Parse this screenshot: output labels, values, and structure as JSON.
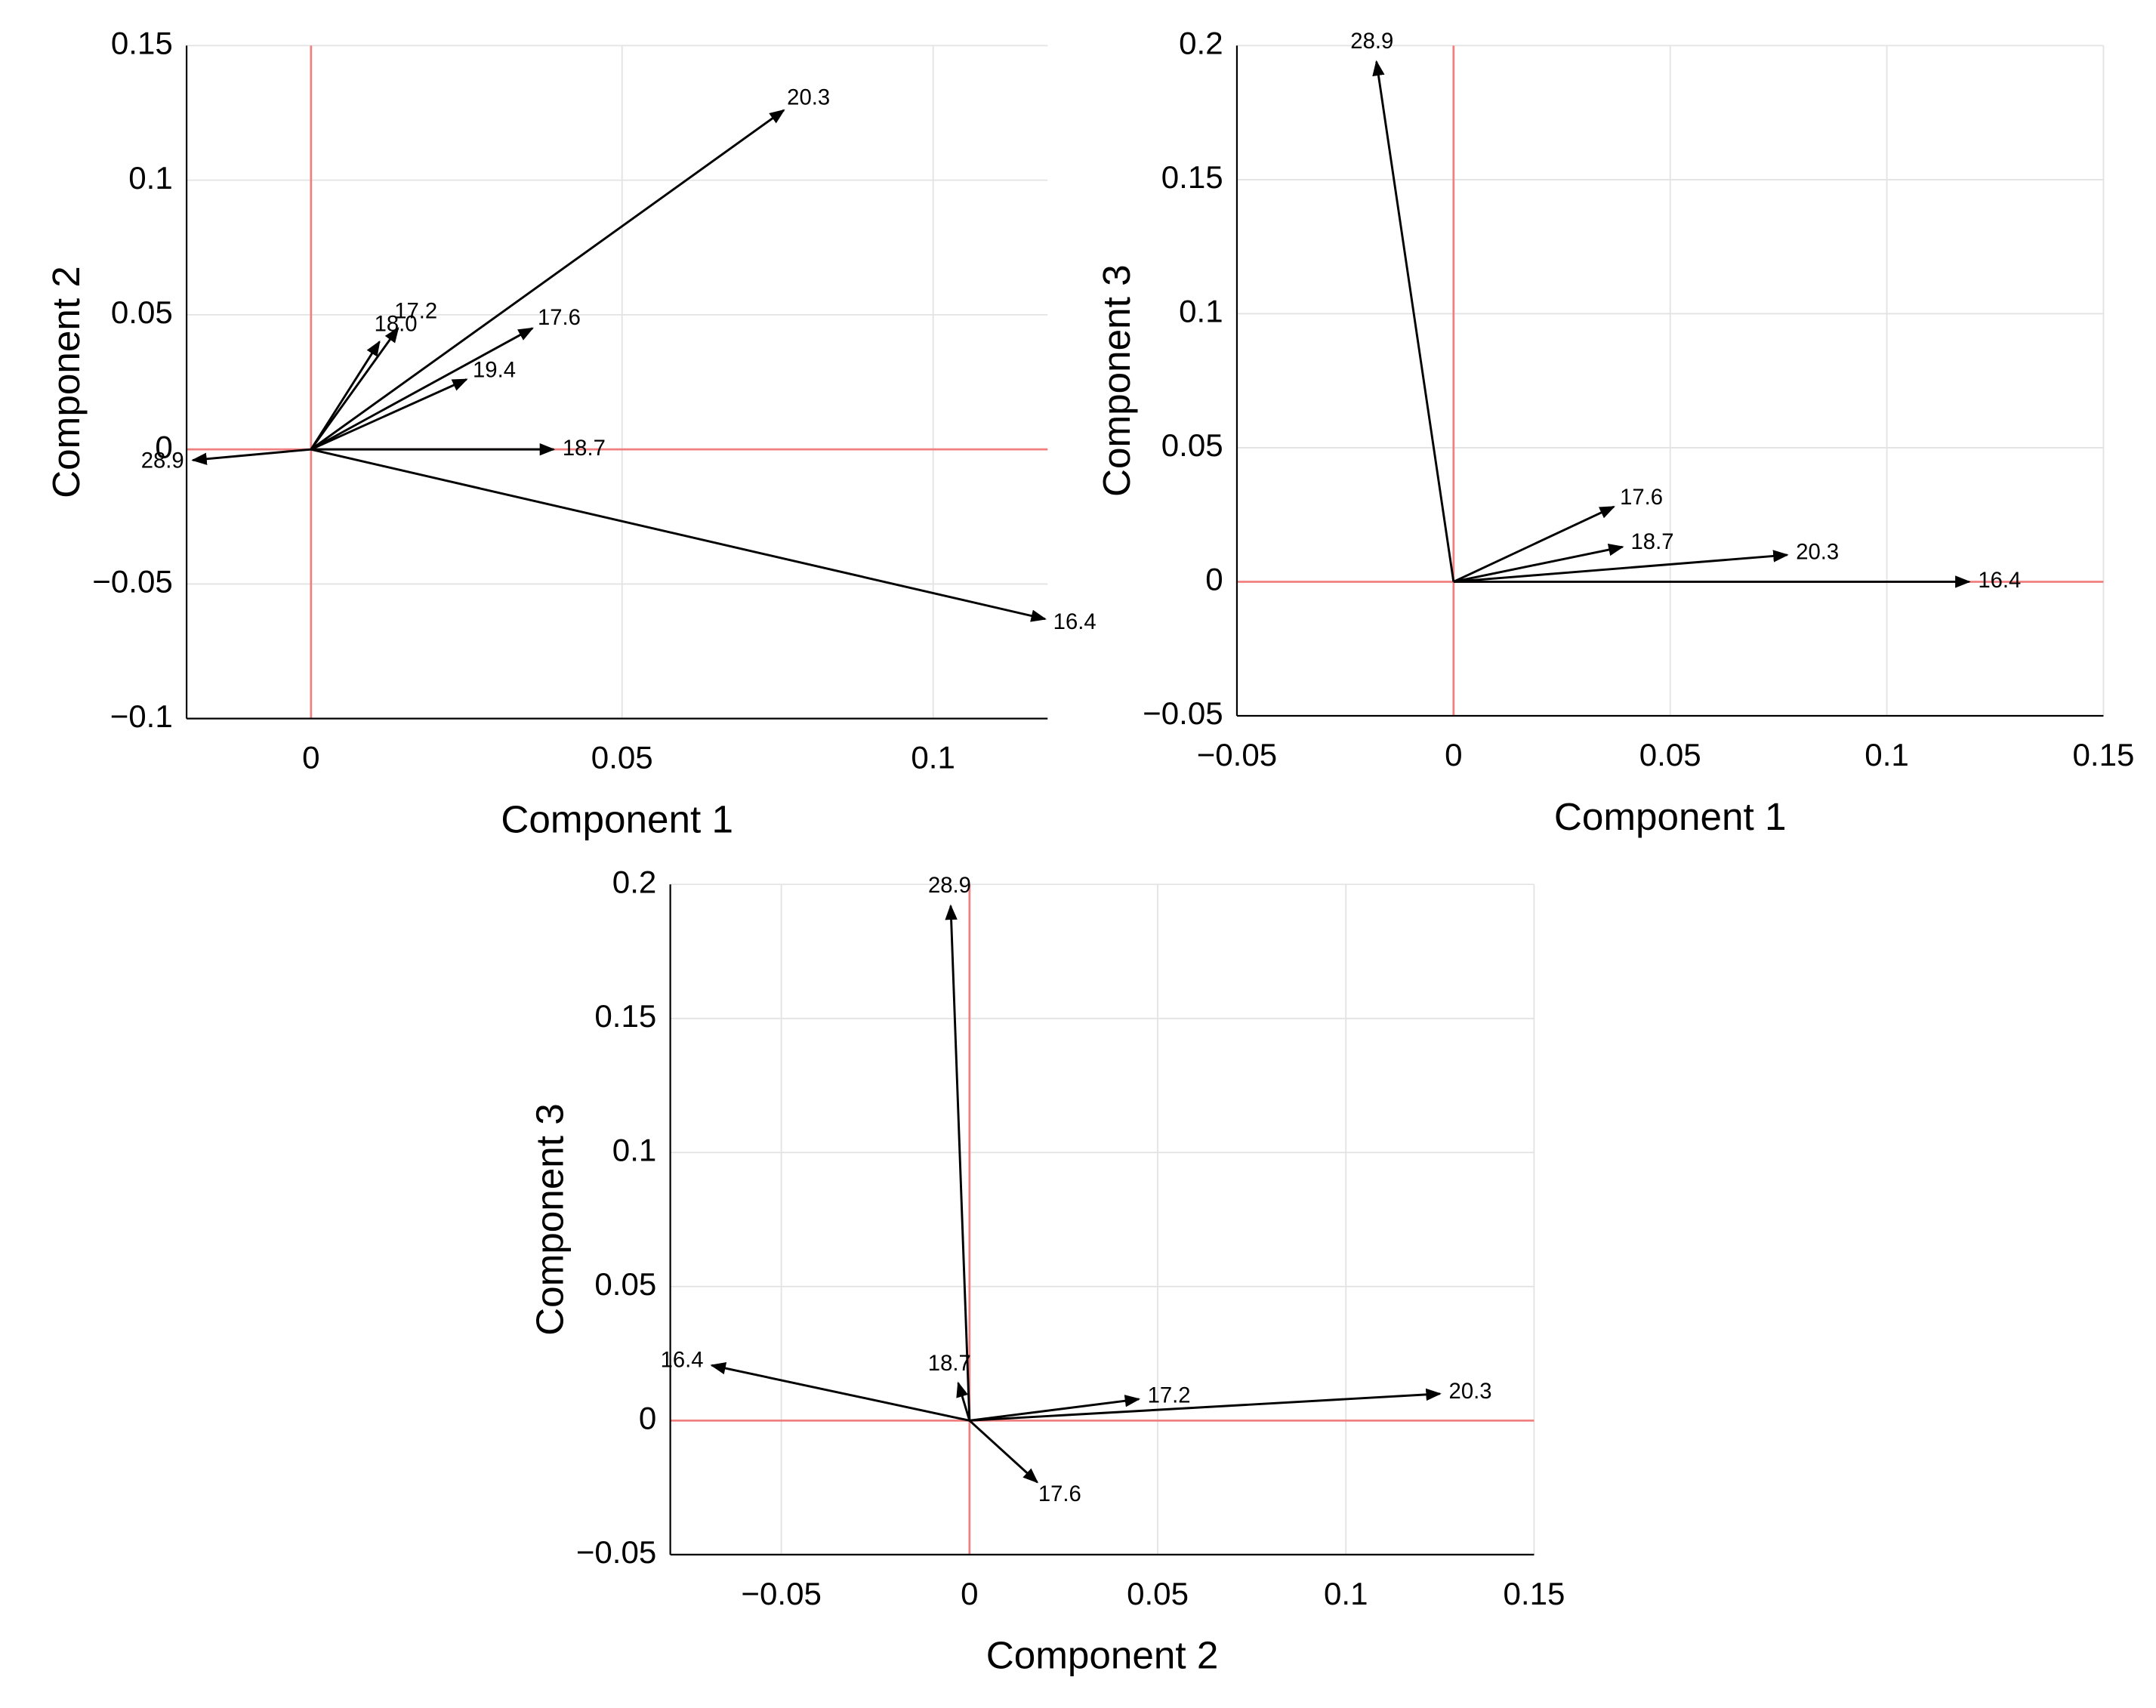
{
  "chart_data": [
    {
      "type": "vector",
      "xlabel": "Component 1",
      "ylabel": "Component 2",
      "xlim": [
        -0.02,
        0.1184
      ],
      "ylim": [
        -0.1,
        0.15
      ],
      "xticks": [
        0,
        0.05,
        0.1
      ],
      "yticks": [
        {
          "value": -0.1,
          "label": "−0.1"
        },
        {
          "value": -0.05,
          "label": "−0.05"
        },
        0,
        0.05,
        0.1,
        0.15
      ],
      "grid": true,
      "color": "#000000",
      "zero_line_color": "#f08080",
      "vectors": [
        {
          "label": "20.3",
          "x": 0.076,
          "y": 0.126
        },
        {
          "label": "17.2",
          "x": 0.014,
          "y": 0.045
        },
        {
          "label": "18.0",
          "x": 0.011,
          "y": 0.04
        },
        {
          "label": "17.6",
          "x": 0.0356,
          "y": 0.045
        },
        {
          "label": "19.4",
          "x": 0.025,
          "y": 0.026
        },
        {
          "label": "18.7",
          "x": 0.039,
          "y": 0
        },
        {
          "label": "28.9",
          "x": -0.019,
          "y": -0.004
        },
        {
          "label": "16.4",
          "x": 0.118,
          "y": -0.063
        }
      ]
    },
    {
      "type": "vector",
      "xlabel": "Component 1",
      "ylabel": "Component 3",
      "xlim": [
        -0.05,
        0.15
      ],
      "ylim": [
        -0.05,
        0.2
      ],
      "xticks": [
        {
          "value": -0.05,
          "label": "−0.05"
        },
        0,
        0.05,
        0.1,
        0.15
      ],
      "yticks": [
        {
          "value": -0.05,
          "label": "−0.05"
        },
        0,
        0.05,
        0.1,
        0.15,
        0.2
      ],
      "grid": true,
      "color": "#000000",
      "zero_line_color": "#f08080",
      "vectors": [
        {
          "label": "28.9",
          "x": -0.0178,
          "y": 0.194
        },
        {
          "label": "17.6",
          "x": 0.037,
          "y": 0.028
        },
        {
          "label": "18.7",
          "x": 0.039,
          "y": 0.013
        },
        {
          "label": "20.3",
          "x": 0.077,
          "y": 0.01
        },
        {
          "label": "16.4",
          "x": 0.119,
          "y": 0
        }
      ]
    },
    {
      "type": "vector",
      "xlabel": "Component 2",
      "ylabel": "Component 3",
      "xlim": [
        -0.0795,
        0.15
      ],
      "ylim": [
        -0.05,
        0.2
      ],
      "xticks": [
        {
          "value": -0.05,
          "label": "−0.05"
        },
        0,
        0.05,
        0.1,
        0.15
      ],
      "yticks": [
        {
          "value": -0.05,
          "label": "−0.05"
        },
        0,
        0.05,
        0.1,
        0.15,
        0.2
      ],
      "grid": true,
      "color": "#000000",
      "zero_line_color": "#f08080",
      "vectors": [
        {
          "label": "28.9",
          "x": -0.005,
          "y": 0.192
        },
        {
          "label": "16.4",
          "x": -0.0685,
          "y": 0.0206
        },
        {
          "label": "18.7",
          "x": -0.003,
          "y": 0.014
        },
        {
          "label": "17.2",
          "x": 0.045,
          "y": 0.008
        },
        {
          "label": "20.3",
          "x": 0.125,
          "y": 0.01
        },
        {
          "label": "17.6",
          "x": 0.018,
          "y": -0.023
        }
      ]
    }
  ]
}
